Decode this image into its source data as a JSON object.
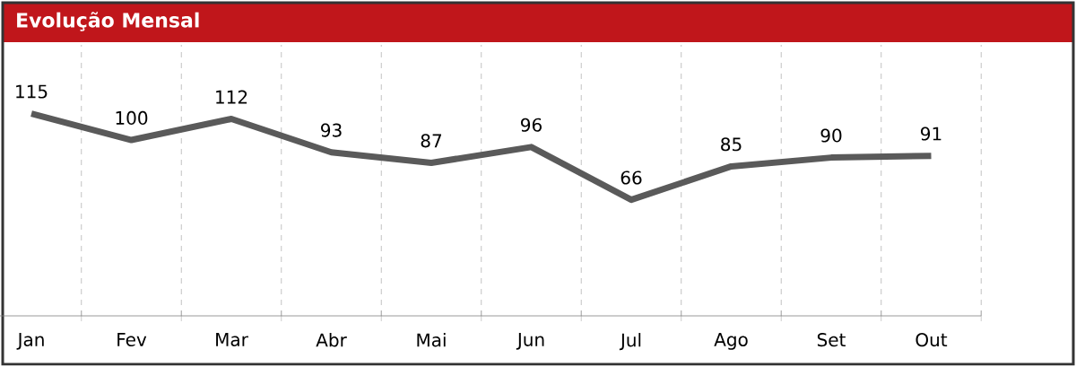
{
  "chart_data": {
    "type": "line",
    "title": "Evolução Mensal",
    "categories": [
      "Jan",
      "Fev",
      "Mar",
      "Abr",
      "Mai",
      "Jun",
      "Jul",
      "Ago",
      "Set",
      "Out"
    ],
    "values": [
      115,
      100,
      112,
      93,
      87,
      96,
      66,
      85,
      90,
      91
    ],
    "color": "#5a5a5a",
    "data_labels": true,
    "grid": "x"
  }
}
